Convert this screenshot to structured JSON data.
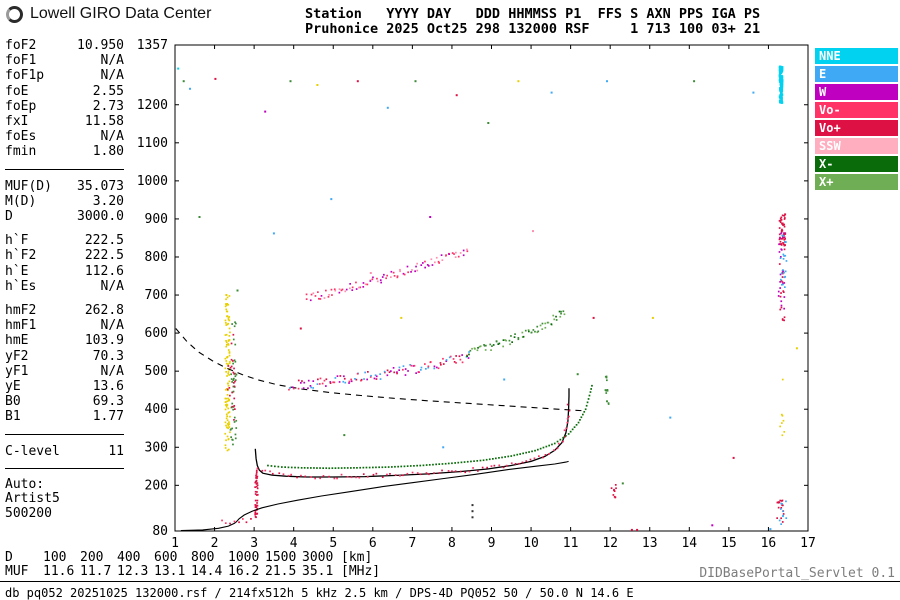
{
  "header": {
    "logo_text": "Lowell GIRO Data Center",
    "line1": "Station   YYYY DAY   DDD HHMMSS P1  FFS S AXN PPS IGA PS",
    "line2": "Pruhonice 2025 Oct25 298 132000 RSF     1 713 100 03+ 21"
  },
  "parameters": {
    "groups": [
      {
        "rows": [
          [
            "foF2",
            "10.950"
          ],
          [
            "foF1",
            "N/A"
          ],
          [
            "foF1p",
            "N/A"
          ],
          [
            "foE",
            "2.55"
          ],
          [
            "foEp",
            "2.73"
          ],
          [
            "fxI",
            "11.58"
          ],
          [
            "foEs",
            "N/A"
          ],
          [
            "fmin",
            "1.80"
          ]
        ],
        "rule_after": true
      },
      {
        "rows": [
          [
            "MUF(D)",
            "35.073"
          ],
          [
            "M(D)",
            "3.20"
          ],
          [
            "D",
            "3000.0"
          ]
        ],
        "rule_after": false
      },
      {
        "rows": [
          [
            "h`F",
            "222.5"
          ],
          [
            "h`F2",
            "222.5"
          ],
          [
            "h`E",
            "112.6"
          ],
          [
            "h`Es",
            "N/A"
          ]
        ],
        "rule_after": false
      },
      {
        "rows": [
          [
            "hmF2",
            "262.8"
          ],
          [
            "hmF1",
            "N/A"
          ],
          [
            "hmE",
            "103.9"
          ],
          [
            "yF2",
            "70.3"
          ],
          [
            "yF1",
            "N/A"
          ],
          [
            "yE",
            "13.6"
          ],
          [
            "B0",
            "69.3"
          ],
          [
            "B1",
            "1.77"
          ]
        ],
        "rule_after": true
      },
      {
        "rows": [
          [
            "C-level",
            "11"
          ]
        ],
        "rule_after": true
      }
    ],
    "auto": {
      "label": "Auto:",
      "line1": "Artist5",
      "line2": "500200"
    }
  },
  "legend": [
    {
      "label": "NNE",
      "color": "#00d2f0"
    },
    {
      "label": "E",
      "color": "#3fa9f5"
    },
    {
      "label": "W",
      "color": "#c000c0"
    },
    {
      "label": "Vo-",
      "color": "#ff3366"
    },
    {
      "label": "Vo+",
      "color": "#dd1144"
    },
    {
      "label": "SSW",
      "color": "#ffaec0"
    },
    {
      "label": "X-",
      "color": "#0a6b0a"
    },
    {
      "label": "X+",
      "color": "#6fae55"
    }
  ],
  "chart_data": {
    "type": "scatter",
    "title": "Pruhonice 2025 Oct25 298 132000 RSF",
    "xlabel": "",
    "ylabel": "",
    "x_unit": "[MHz]",
    "y_unit": "[km]",
    "xlim": [
      1,
      17
    ],
    "ylim": [
      80,
      1357
    ],
    "grid": false,
    "legend_position": "right",
    "legend": [
      "NNE",
      "E",
      "W",
      "Vo-",
      "Vo+",
      "SSW",
      "X-",
      "X+"
    ],
    "x_ticks": [
      1,
      2,
      3,
      4,
      5,
      6,
      7,
      8,
      9,
      10,
      11,
      12,
      13,
      14,
      15,
      16,
      17
    ],
    "y_ticks": [
      1357,
      1200,
      1100,
      1000,
      900,
      800,
      700,
      600,
      500,
      400,
      300,
      200,
      80
    ],
    "traces": [
      {
        "name": "muf-transmission-curve",
        "style": "dashed",
        "color": "#000000",
        "width": 1.1,
        "points": [
          [
            1.02,
            612
          ],
          [
            1.3,
            578
          ],
          [
            1.6,
            550
          ],
          [
            1.95,
            527
          ],
          [
            2.3,
            508
          ],
          [
            2.7,
            491
          ],
          [
            3.1,
            477
          ],
          [
            3.6,
            464
          ],
          [
            4.2,
            453
          ],
          [
            4.9,
            444
          ],
          [
            5.7,
            436
          ],
          [
            6.5,
            429
          ],
          [
            7.4,
            422
          ],
          [
            8.3,
            416
          ],
          [
            9.2,
            410
          ],
          [
            10.1,
            404
          ],
          [
            11.0,
            398
          ],
          [
            11.3,
            396
          ]
        ]
      },
      {
        "name": "true-height-profile",
        "style": "line",
        "color": "#000000",
        "width": 1.1,
        "points": [
          [
            1.15,
            81
          ],
          [
            1.7,
            83
          ],
          [
            2.1,
            87
          ],
          [
            2.35,
            93
          ],
          [
            2.5,
            100
          ],
          [
            2.55,
            104
          ],
          [
            2.62,
            112
          ],
          [
            2.75,
            122
          ],
          [
            2.95,
            132
          ],
          [
            3.2,
            141
          ],
          [
            3.6,
            151
          ],
          [
            4.1,
            161
          ],
          [
            4.7,
            172
          ],
          [
            5.4,
            183
          ],
          [
            6.2,
            196
          ],
          [
            7.0,
            207
          ],
          [
            7.8,
            218
          ],
          [
            8.6,
            229
          ],
          [
            9.4,
            241
          ],
          [
            10.1,
            250
          ],
          [
            10.6,
            256
          ],
          [
            10.88,
            261
          ],
          [
            10.95,
            263
          ]
        ]
      },
      {
        "name": "o-trace-f",
        "style": "line",
        "color": "#000000",
        "width": 1.3,
        "points": [
          [
            3.03,
            296
          ],
          [
            3.05,
            270
          ],
          [
            3.08,
            252
          ],
          [
            3.13,
            240
          ],
          [
            3.22,
            232
          ],
          [
            3.45,
            227
          ],
          [
            3.8,
            224
          ],
          [
            4.3,
            222
          ],
          [
            5.0,
            222
          ],
          [
            5.8,
            223
          ],
          [
            6.6,
            226
          ],
          [
            7.4,
            230
          ],
          [
            8.2,
            236
          ],
          [
            8.9,
            243
          ],
          [
            9.5,
            252
          ],
          [
            10.0,
            263
          ],
          [
            10.35,
            276
          ],
          [
            10.6,
            292
          ],
          [
            10.78,
            312
          ],
          [
            10.88,
            338
          ],
          [
            10.93,
            368
          ],
          [
            10.95,
            400
          ],
          [
            10.96,
            435
          ],
          [
            10.96,
            455
          ]
        ]
      },
      {
        "name": "o-trace-doppler-overlay",
        "style": "scatter",
        "colors": [
          "#dd1144",
          "#ff3366"
        ],
        "step": 4,
        "spread": 2,
        "density": 1,
        "points": [
          [
            3.1,
            246
          ],
          [
            3.5,
            228
          ],
          [
            4.2,
            223
          ],
          [
            5.0,
            223
          ],
          [
            6.0,
            225
          ],
          [
            7.0,
            230
          ],
          [
            8.0,
            236
          ],
          [
            9.0,
            246
          ],
          [
            9.8,
            260
          ],
          [
            10.3,
            275
          ],
          [
            10.65,
            297
          ],
          [
            10.85,
            331
          ],
          [
            10.93,
            373
          ],
          [
            10.96,
            420
          ]
        ]
      },
      {
        "name": "x-trace",
        "style": "dots",
        "color": "#0a6b0a",
        "step": 3,
        "points": [
          [
            3.35,
            252
          ],
          [
            3.7,
            248
          ],
          [
            4.2,
            246
          ],
          [
            4.9,
            245
          ],
          [
            5.6,
            246
          ],
          [
            6.4,
            248
          ],
          [
            7.2,
            252
          ],
          [
            8.0,
            258
          ],
          [
            8.8,
            266
          ],
          [
            9.5,
            277
          ],
          [
            10.1,
            291
          ],
          [
            10.6,
            310
          ],
          [
            10.95,
            335
          ],
          [
            11.2,
            365
          ],
          [
            11.38,
            400
          ],
          [
            11.5,
            445
          ],
          [
            11.56,
            470
          ]
        ]
      },
      {
        "name": "second-order-o-trace",
        "style": "scatter",
        "colors": [
          "#ff3366",
          "#dd1144",
          "#3fa9f5",
          "#c000c0"
        ],
        "step": 3,
        "spread": 5,
        "density": 2,
        "points": [
          [
            3.9,
            463
          ],
          [
            4.2,
            465
          ],
          [
            4.6,
            469
          ],
          [
            5.0,
            474
          ],
          [
            5.4,
            479
          ],
          [
            5.8,
            485
          ],
          [
            6.2,
            491
          ],
          [
            6.6,
            498
          ],
          [
            7.0,
            506
          ],
          [
            7.4,
            514
          ],
          [
            7.8,
            523
          ],
          [
            8.2,
            532
          ],
          [
            8.5,
            540
          ]
        ]
      },
      {
        "name": "second-order-x-trace",
        "style": "scatter",
        "colors": [
          "#3d8b37",
          "#6fae55",
          "#0a6b0a"
        ],
        "step": 3,
        "spread": 4,
        "density": 2,
        "points": [
          [
            8.4,
            548
          ],
          [
            8.8,
            559
          ],
          [
            9.2,
            572
          ],
          [
            9.6,
            587
          ],
          [
            10.0,
            604
          ],
          [
            10.35,
            622
          ],
          [
            10.65,
            642
          ],
          [
            10.9,
            662
          ]
        ]
      },
      {
        "name": "third-order-trace",
        "style": "scatter",
        "colors": [
          "#ff3366",
          "#ff8fae",
          "#c000c0"
        ],
        "step": 3,
        "spread": 4,
        "density": 2,
        "points": [
          [
            4.35,
            692
          ],
          [
            4.7,
            700
          ],
          [
            5.05,
            709
          ],
          [
            5.4,
            719
          ],
          [
            5.75,
            729
          ],
          [
            6.1,
            740
          ],
          [
            6.45,
            751
          ],
          [
            6.8,
            762
          ],
          [
            7.15,
            774
          ],
          [
            7.5,
            786
          ],
          [
            7.85,
            798
          ],
          [
            8.2,
            809
          ],
          [
            8.45,
            815
          ]
        ]
      },
      {
        "name": "es-trace",
        "style": "scatter",
        "colors": [
          "#dd1144",
          "#ff3366"
        ],
        "step": 3,
        "spread": 2,
        "density": 1,
        "points": [
          [
            2.2,
            103
          ],
          [
            2.5,
            105
          ],
          [
            2.8,
            108
          ],
          [
            3.0,
            110
          ]
        ]
      }
    ],
    "noise_columns": [
      {
        "x": 2.33,
        "y1": 290,
        "y2": 700,
        "color": "#e8d000",
        "n": 110,
        "jx": 1.2
      },
      {
        "x": 2.48,
        "y1": 300,
        "y2": 640,
        "color": "#3d8b37",
        "n": 40,
        "jx": 1.5
      },
      {
        "x": 2.42,
        "y1": 320,
        "y2": 600,
        "color": "#dd1144",
        "n": 22,
        "jx": 2
      },
      {
        "x": 3.06,
        "y1": 112,
        "y2": 240,
        "color": "#dd1144",
        "n": 45,
        "jx": 0.7
      },
      {
        "x": 11.92,
        "y1": 400,
        "y2": 500,
        "color": "#3d8b37",
        "n": 14,
        "jx": 0.8
      },
      {
        "x": 12.1,
        "y1": 168,
        "y2": 205,
        "color": "#dd1144",
        "n": 10,
        "jx": 1.5
      },
      {
        "x": 16.32,
        "y1": 1205,
        "y2": 1300,
        "color": "#00d2f0",
        "n": 120,
        "jx": 0.6,
        "s": 2.4
      },
      {
        "x": 16.35,
        "y1": 830,
        "y2": 910,
        "color": "#dd1144",
        "n": 50,
        "jx": 1.5
      },
      {
        "x": 16.34,
        "y1": 620,
        "y2": 830,
        "color": "#dd1144",
        "n": 18,
        "jx": 1.5
      },
      {
        "x": 16.33,
        "y1": 650,
        "y2": 880,
        "color": "#c000c0",
        "n": 22,
        "jx": 1.5
      },
      {
        "x": 16.38,
        "y1": 700,
        "y2": 860,
        "color": "#3fa9f5",
        "n": 20,
        "jx": 1.5
      },
      {
        "x": 16.3,
        "y1": 95,
        "y2": 168,
        "color": "#dd1144",
        "n": 16,
        "jx": 1.8
      },
      {
        "x": 16.36,
        "y1": 95,
        "y2": 160,
        "color": "#3fa9f5",
        "n": 10,
        "jx": 1.8
      },
      {
        "x": 16.34,
        "y1": 300,
        "y2": 480,
        "color": "#e8d000",
        "n": 8,
        "jx": 1.5
      }
    ],
    "noise_points": [
      {
        "x": 1.08,
        "y": 1295,
        "c": "#00d2f0"
      },
      {
        "x": 1.22,
        "y": 1262,
        "c": "#3d8b37"
      },
      {
        "x": 1.38,
        "y": 1242,
        "c": "#3fa9f5"
      },
      {
        "x": 1.62,
        "y": 905,
        "c": "#3d8b37"
      },
      {
        "x": 2.02,
        "y": 1268,
        "c": "#dd1144"
      },
      {
        "x": 2.3,
        "y": 700,
        "c": "#e8d000"
      },
      {
        "x": 2.58,
        "y": 712,
        "c": "#3d8b37"
      },
      {
        "x": 3.28,
        "y": 1182,
        "c": "#c000c0"
      },
      {
        "x": 3.5,
        "y": 862,
        "c": "#3fa9f5"
      },
      {
        "x": 3.92,
        "y": 1262,
        "c": "#3d8b37"
      },
      {
        "x": 4.18,
        "y": 612,
        "c": "#dd1144"
      },
      {
        "x": 4.6,
        "y": 1252,
        "c": "#e8d000"
      },
      {
        "x": 4.95,
        "y": 952,
        "c": "#3fa9f5"
      },
      {
        "x": 5.28,
        "y": 332,
        "c": "#3d8b37"
      },
      {
        "x": 5.62,
        "y": 1262,
        "c": "#dd1144"
      },
      {
        "x": 5.95,
        "y": 758,
        "c": "#ff8fae"
      },
      {
        "x": 6.38,
        "y": 1192,
        "c": "#3fa9f5"
      },
      {
        "x": 6.72,
        "y": 640,
        "c": "#e8d000"
      },
      {
        "x": 7.08,
        "y": 1262,
        "c": "#3d8b37"
      },
      {
        "x": 7.45,
        "y": 905,
        "c": "#c000c0"
      },
      {
        "x": 7.78,
        "y": 300,
        "c": "#3fa9f5"
      },
      {
        "x": 8.12,
        "y": 1225,
        "c": "#dd1144"
      },
      {
        "x": 8.52,
        "y": 116,
        "c": "#333333"
      },
      {
        "x": 8.52,
        "y": 132,
        "c": "#333333"
      },
      {
        "x": 8.52,
        "y": 148,
        "c": "#333333"
      },
      {
        "x": 8.92,
        "y": 1152,
        "c": "#3d8b37"
      },
      {
        "x": 9.32,
        "y": 478,
        "c": "#3fa9f5"
      },
      {
        "x": 9.68,
        "y": 1262,
        "c": "#e8d000"
      },
      {
        "x": 10.05,
        "y": 868,
        "c": "#ff8fae"
      },
      {
        "x": 10.52,
        "y": 1232,
        "c": "#3fa9f5"
      },
      {
        "x": 11.18,
        "y": 492,
        "c": "#3d8b37"
      },
      {
        "x": 11.58,
        "y": 640,
        "c": "#dd1144"
      },
      {
        "x": 11.92,
        "y": 1262,
        "c": "#3fa9f5"
      },
      {
        "x": 12.32,
        "y": 205,
        "c": "#3d8b37"
      },
      {
        "x": 12.55,
        "y": 83,
        "c": "#dd1144"
      },
      {
        "x": 12.68,
        "y": 83,
        "c": "#dd1144"
      },
      {
        "x": 13.08,
        "y": 640,
        "c": "#e8d000"
      },
      {
        "x": 13.52,
        "y": 378,
        "c": "#3fa9f5"
      },
      {
        "x": 14.12,
        "y": 1262,
        "c": "#3d8b37"
      },
      {
        "x": 14.58,
        "y": 95,
        "c": "#c000c0"
      },
      {
        "x": 15.12,
        "y": 272,
        "c": "#dd1144"
      },
      {
        "x": 15.62,
        "y": 1232,
        "c": "#3fa9f5"
      },
      {
        "x": 16.05,
        "y": 85,
        "c": "#3fa9f5"
      },
      {
        "x": 16.42,
        "y": 912,
        "c": "#dd1144"
      },
      {
        "x": 16.72,
        "y": 560,
        "c": "#e8d000"
      }
    ]
  },
  "footer": {
    "d_row": {
      "label": "D",
      "values": [
        "100",
        "200",
        "400",
        "600",
        "800",
        "1000",
        "1500",
        "3000"
      ],
      "unit": "[km]"
    },
    "muf_row": {
      "label": "MUF",
      "values": [
        "11.6",
        "11.7",
        "12.3",
        "13.1",
        "14.4",
        "16.2",
        "21.5",
        "35.1"
      ],
      "unit": "[MHz]"
    },
    "status": "db pq052 20251025 132000.rsf / 214fx512h 5 kHz 2.5 km / DPS-4D PQ052 50 / 50.0 N 14.6 E",
    "servlet": "DIDBasePortal_Servlet 0.1"
  }
}
